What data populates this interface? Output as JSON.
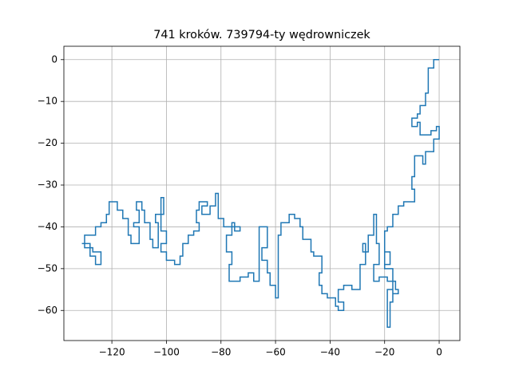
{
  "chart_data": {
    "type": "line",
    "title": "741 kroków. 739794-ty wędrowniczek",
    "xlim": [
      -137.6,
      7.6
    ],
    "ylim": [
      -67.2,
      3.2
    ],
    "grid": true,
    "xticks": [
      {
        "value": -120,
        "label": "−120"
      },
      {
        "value": -100,
        "label": "−100"
      },
      {
        "value": -80,
        "label": "−80"
      },
      {
        "value": -60,
        "label": "−60"
      },
      {
        "value": -40,
        "label": "−40"
      },
      {
        "value": -20,
        "label": "−20"
      },
      0
    ],
    "yticks": [
      0,
      {
        "value": -10,
        "label": "−10"
      },
      {
        "value": -20,
        "label": "−20"
      },
      {
        "value": -30,
        "label": "−30"
      },
      {
        "value": -40,
        "label": "−40"
      },
      {
        "value": -50,
        "label": "−50"
      },
      {
        "value": -60,
        "label": "−60"
      }
    ],
    "series": [
      {
        "color": "#1f77b4",
        "x": [
          0,
          -2,
          -2,
          -4,
          -4,
          -5,
          -5,
          -7,
          -7,
          -8,
          -8,
          -10,
          -10,
          -8,
          -8,
          -7,
          -7,
          -3,
          -3,
          -1,
          -1,
          0,
          0,
          -2,
          -2,
          -5,
          -5,
          -6,
          -6,
          -9,
          -9,
          -10,
          -10,
          -9,
          -9,
          -13,
          -13,
          -15,
          -15,
          -17,
          -17,
          -19,
          -19,
          -20,
          -20,
          -18,
          -18,
          -20,
          -20,
          -17,
          -17,
          -16,
          -16,
          -15,
          -15,
          -17,
          -17,
          -19,
          -19,
          -18,
          -18,
          -17,
          -17,
          -19,
          -19,
          -22,
          -22,
          -24,
          -24,
          -22,
          -22,
          -23,
          -23,
          -24,
          -24,
          -26,
          -26,
          -28,
          -28,
          -27,
          -27,
          -29,
          -29,
          -32,
          -32,
          -35,
          -35,
          -37,
          -37,
          -35,
          -35,
          -37,
          -37,
          -38,
          -38,
          -41,
          -41,
          -43,
          -43,
          -44,
          -44,
          -43,
          -43,
          -46,
          -46,
          -47,
          -47,
          -50,
          -50,
          -51,
          -51,
          -53,
          -53,
          -55,
          -55,
          -58,
          -58,
          -59,
          -59,
          -60,
          -60,
          -62,
          -62,
          -63,
          -63,
          -65,
          -65,
          -63,
          -63,
          -66,
          -66,
          -68,
          -68,
          -70,
          -70,
          -73,
          -73,
          -77,
          -77,
          -76,
          -76,
          -78,
          -78,
          -76,
          -76,
          -75,
          -75,
          -73,
          -73,
          -79,
          -79,
          -81,
          -81,
          -82,
          -82,
          -84,
          -84,
          -87,
          -87,
          -85,
          -85,
          -88,
          -88,
          -89,
          -89,
          -88,
          -88,
          -90,
          -90,
          -92,
          -92,
          -94,
          -94,
          -95,
          -95,
          -97,
          -97,
          -100,
          -100,
          -102,
          -102,
          -100,
          -100,
          -102,
          -102,
          -101,
          -101,
          -102,
          -102,
          -104,
          -104,
          -103,
          -103,
          -105,
          -105,
          -106,
          -106,
          -108,
          -108,
          -109,
          -109,
          -111,
          -111,
          -110,
          -110,
          -112,
          -112,
          -110,
          -110,
          -113,
          -113,
          -114,
          -114,
          -116,
          -116,
          -118,
          -118,
          -121,
          -121,
          -122,
          -122,
          -124,
          -124,
          -126,
          -126,
          -130,
          -130,
          -128,
          -128,
          -126,
          -126,
          -124,
          -124,
          -127,
          -127,
          -130,
          -130,
          -131
        ],
        "y": [
          0,
          0,
          -2,
          -2,
          -8,
          -8,
          -11,
          -11,
          -13,
          -13,
          -14,
          -14,
          -16,
          -16,
          -15,
          -15,
          -18,
          -18,
          -17,
          -17,
          -16,
          -16,
          -19,
          -19,
          -22,
          -22,
          -25,
          -25,
          -23,
          -23,
          -28,
          -28,
          -31,
          -31,
          -34,
          -34,
          -35,
          -35,
          -37,
          -37,
          -40,
          -40,
          -41,
          -41,
          -49,
          -49,
          -46,
          -46,
          -50,
          -50,
          -53,
          -53,
          -55,
          -55,
          -56,
          -56,
          -55,
          -55,
          -64,
          -64,
          -58,
          -58,
          -53,
          -53,
          -52,
          -52,
          -53,
          -53,
          -49,
          -49,
          -44,
          -44,
          -37,
          -37,
          -42,
          -42,
          -46,
          -46,
          -44,
          -44,
          -49,
          -49,
          -55,
          -55,
          -54,
          -54,
          -55,
          -55,
          -58,
          -58,
          -60,
          -60,
          -59,
          -59,
          -57,
          -57,
          -56,
          -56,
          -54,
          -54,
          -51,
          -51,
          -47,
          -47,
          -46,
          -46,
          -43,
          -43,
          -40,
          -40,
          -38,
          -38,
          -37,
          -37,
          -39,
          -39,
          -42,
          -42,
          -57,
          -57,
          -54,
          -54,
          -51,
          -51,
          -48,
          -48,
          -45,
          -45,
          -40,
          -40,
          -53,
          -53,
          -51,
          -51,
          -52,
          -52,
          -53,
          -53,
          -49,
          -49,
          -46,
          -46,
          -42,
          -42,
          -39,
          -39,
          -41,
          -41,
          -40,
          -40,
          -38,
          -38,
          -32,
          -32,
          -35,
          -35,
          -37,
          -37,
          -35,
          -35,
          -34,
          -34,
          -36,
          -36,
          -39,
          -39,
          -41,
          -41,
          -42,
          -42,
          -44,
          -44,
          -47,
          -47,
          -49,
          -49,
          -48,
          -48,
          -46,
          -46,
          -44,
          -44,
          -41,
          -41,
          -37,
          -37,
          -33,
          -33,
          -37,
          -37,
          -39,
          -39,
          -45,
          -45,
          -43,
          -43,
          -39,
          -39,
          -36,
          -36,
          -34,
          -34,
          -36,
          -36,
          -39,
          -39,
          -40,
          -40,
          -44,
          -44,
          -42,
          -42,
          -38,
          -38,
          -36,
          -36,
          -34,
          -34,
          -37,
          -37,
          -39,
          -39,
          -40,
          -40,
          -42,
          -42,
          -44,
          -44,
          -47,
          -47,
          -49,
          -49,
          -46,
          -46,
          -45,
          -45,
          -44,
          -44
        ]
      }
    ]
  }
}
